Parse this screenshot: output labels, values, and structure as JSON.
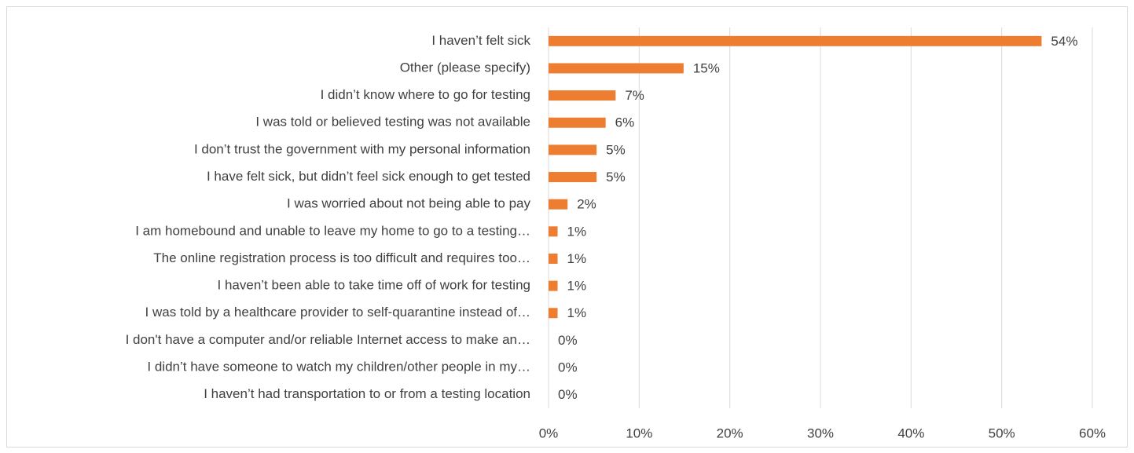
{
  "chart_data": {
    "type": "barh",
    "categories": [
      "I haven’t felt sick",
      "Other (please specify)",
      "I didn’t know where to go for testing",
      "I was told or believed testing was not available",
      "I don’t trust the government with my personal information",
      "I have felt sick, but didn’t feel sick enough to get tested",
      "I was worried about not being able to pay",
      "I am homebound and unable to leave my home to go to a testing…",
      "The online registration process is too difficult and requires too…",
      "I haven’t been able to take time off of work for testing",
      "I was told by a healthcare provider to self-quarantine instead of…",
      "I don't have a computer and/or reliable Internet access to make an…",
      "I didn’t have someone to watch my children/other people in my…",
      "I haven’t had transportation to or from a testing location"
    ],
    "values": [
      54.4,
      14.9,
      7.4,
      6.3,
      5.3,
      5.3,
      2.1,
      1.0,
      1.0,
      1.0,
      1.0,
      0,
      0,
      0
    ],
    "value_labels": [
      "54%",
      "15%",
      "7%",
      "6%",
      "5%",
      "5%",
      "2%",
      "1%",
      "1%",
      "1%",
      "1%",
      "0%",
      "0%",
      "0%"
    ],
    "color": "#ed7d31",
    "xlim": [
      0,
      60
    ],
    "xticks": [
      {
        "value": 0,
        "label": "0%"
      },
      {
        "value": 10,
        "label": "10%"
      },
      {
        "value": 20,
        "label": "20%"
      },
      {
        "value": 30,
        "label": "30%"
      },
      {
        "value": 40,
        "label": "40%"
      },
      {
        "value": 50,
        "label": "50%"
      },
      {
        "value": 60,
        "label": "60%"
      }
    ],
    "grid": true
  }
}
